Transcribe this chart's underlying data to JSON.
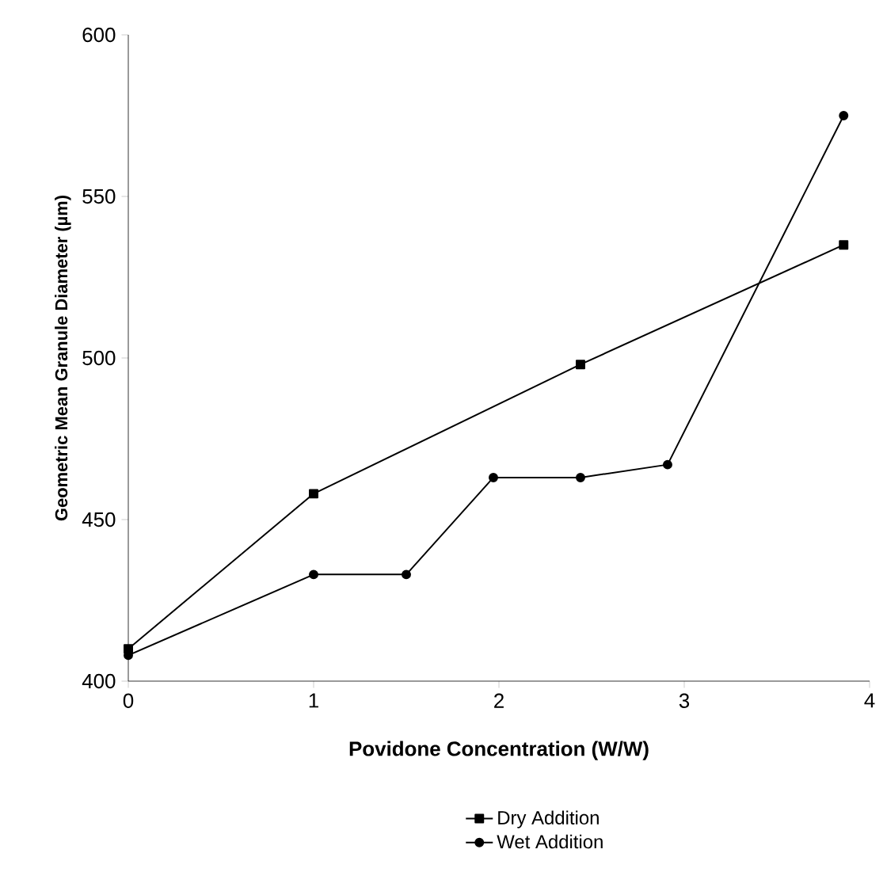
{
  "chart_data": {
    "type": "line",
    "xlabel": "Povidone Concentration (W/W)",
    "ylabel": "Geometric Mean Granule Diameter (µm)",
    "series": [
      {
        "name": "Dry Addition",
        "color": "#000000",
        "marker": "square",
        "x": [
          0,
          1,
          2.44,
          3.86
        ],
        "values": [
          410,
          458,
          498,
          535
        ]
      },
      {
        "name": "Wet Addition",
        "color": "#000000",
        "marker": "circle",
        "x": [
          0,
          1,
          1.5,
          1.97,
          2.44,
          2.91,
          3.86
        ],
        "values": [
          408,
          433,
          433,
          463,
          463,
          467,
          575
        ]
      }
    ],
    "xlim": [
      0,
      4
    ],
    "ylim": [
      400,
      600
    ],
    "xticks": [
      0,
      1,
      2,
      3,
      4
    ],
    "yticks": [
      400,
      450,
      500,
      550,
      600
    ],
    "legend": "bottom",
    "grid": false
  }
}
